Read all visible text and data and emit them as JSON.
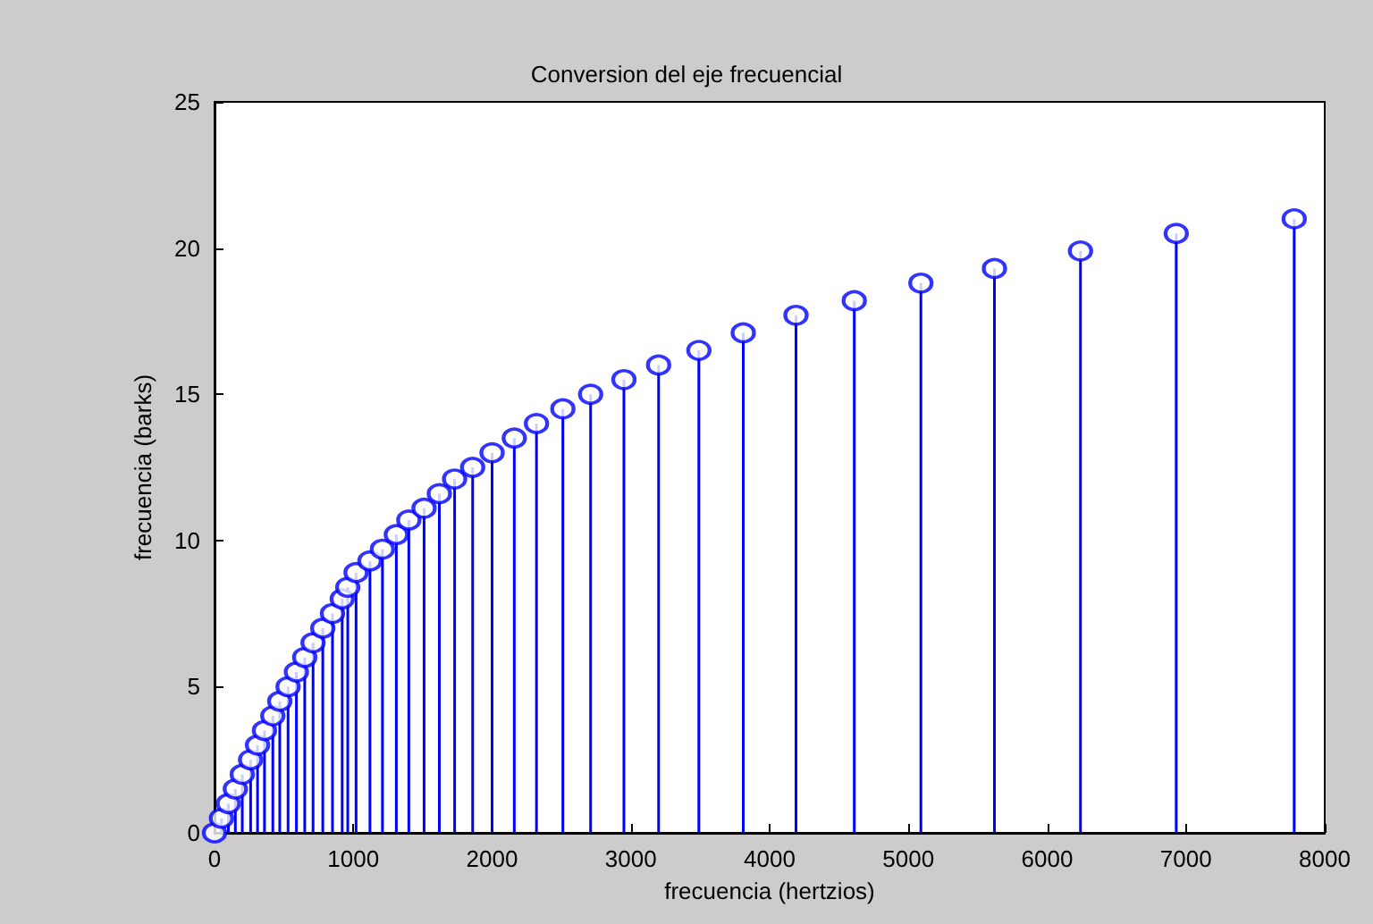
{
  "chart_data": {
    "type": "lollipop",
    "title": "Conversion del eje frecuencial",
    "xlabel": "frecuencia (hertzios)",
    "ylabel": "frecuencia (barks)",
    "x": [
      0,
      50,
      100,
      150,
      200,
      260,
      310,
      360,
      420,
      470,
      530,
      590,
      650,
      710,
      780,
      850,
      920,
      960,
      1020,
      1120,
      1210,
      1310,
      1400,
      1510,
      1620,
      1730,
      1860,
      2000,
      2160,
      2320,
      2510,
      2710,
      2950,
      3200,
      3490,
      3810,
      4190,
      4610,
      5090,
      5620,
      6240,
      6930,
      7780
    ],
    "values": [
      0,
      0.5,
      1,
      1.5,
      2,
      2.5,
      3,
      3.5,
      4,
      4.5,
      5,
      5.5,
      6,
      6.5,
      7,
      7.5,
      8,
      8.4,
      8.9,
      9.3,
      9.7,
      10.2,
      10.7,
      11.1,
      11.6,
      12.1,
      12.5,
      13,
      13.5,
      14,
      14.5,
      15,
      15.5,
      16,
      16.5,
      17.1,
      17.7,
      18.2,
      18.8,
      19.3,
      19.9,
      20.5,
      21
    ],
    "color": "#0000ff",
    "marker": "circle",
    "xlim": [
      0,
      8000
    ],
    "xticks": [
      0,
      1000,
      2000,
      3000,
      4000,
      5000,
      6000,
      7000,
      8000
    ],
    "ylim": [
      0,
      25
    ],
    "yticks": [
      0,
      5,
      10,
      15,
      20,
      25
    ],
    "grid": false
  }
}
